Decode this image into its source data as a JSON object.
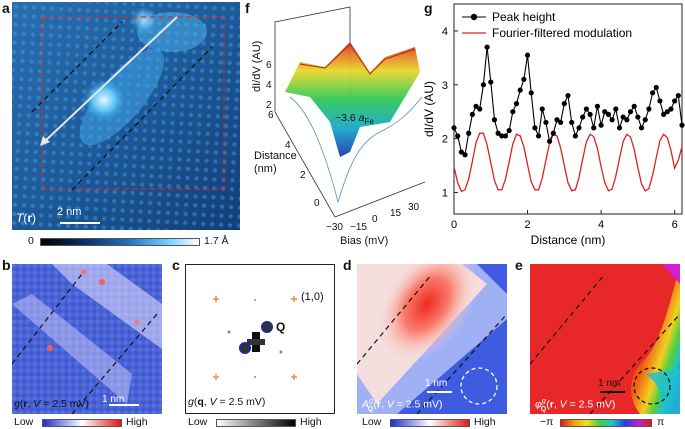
{
  "panels": {
    "a": {
      "letter": "a",
      "map_label": "T(r)",
      "scale_bar": "2 nm",
      "colorbar_min": "0",
      "colorbar_max": "1.7 Å"
    },
    "b": {
      "letter": "b",
      "map_label": "g(r, V = 2.5 mV)",
      "scale_bar": "1 nm",
      "colorbar_low": "Low",
      "colorbar_high": "High"
    },
    "c": {
      "letter": "c",
      "map_label": "g(q, V = 2.5 mV)",
      "bragg_label": "(1,0)",
      "q_label": "Q",
      "colorbar_low": "Low",
      "colorbar_high": "High"
    },
    "d": {
      "letter": "d",
      "map_label": "A_Q^g(r, V = 2.5 mV)",
      "scale_bar": "1 nm",
      "colorbar_low": "Low",
      "colorbar_high": "High"
    },
    "e": {
      "letter": "e",
      "map_label": "φ_Q^g(r, V = 2.5 mV)",
      "scale_bar": "1 nm",
      "colorbar_min": "−π",
      "colorbar_max": "π"
    },
    "f": {
      "letter": "f",
      "zlabel": "dI/dV (AU)",
      "ylabel": "Distance (nm)",
      "xlabel": "Bias (mV)",
      "annotation": "~3.6 a_Fe",
      "z_ticks": [
        "6",
        "4",
        "2",
        "0"
      ],
      "y_ticks": [
        "6",
        "4",
        "2",
        "0"
      ],
      "x_ticks": [
        "−30",
        "−15",
        "0",
        "15",
        "30"
      ]
    },
    "g": {
      "letter": "g"
    }
  },
  "colors": {
    "peak_height": "#000000",
    "modulation": "#e02020",
    "accent_dashed": "#cc2222"
  },
  "chart_data": {
    "type": "line",
    "title": "",
    "xlabel": "Distance (nm)",
    "ylabel": "dI/dV (AU)",
    "xlim": [
      0,
      6.2
    ],
    "ylim": [
      0.6,
      4.5
    ],
    "x_ticks": [
      0,
      2,
      4,
      6
    ],
    "y_ticks": [
      1,
      2,
      3,
      4
    ],
    "legend": "top-left",
    "series": [
      {
        "name": "Peak height",
        "marker": "circle",
        "x": [
          0.0,
          0.1,
          0.2,
          0.3,
          0.4,
          0.5,
          0.6,
          0.7,
          0.8,
          0.9,
          1.0,
          1.1,
          1.2,
          1.3,
          1.4,
          1.5,
          1.6,
          1.7,
          1.8,
          1.9,
          2.0,
          2.1,
          2.2,
          2.3,
          2.4,
          2.5,
          2.6,
          2.7,
          2.8,
          2.9,
          3.0,
          3.1,
          3.2,
          3.3,
          3.4,
          3.5,
          3.6,
          3.7,
          3.8,
          3.9,
          4.0,
          4.1,
          4.2,
          4.3,
          4.4,
          4.5,
          4.6,
          4.7,
          4.8,
          4.9,
          5.0,
          5.1,
          5.2,
          5.3,
          5.4,
          5.5,
          5.6,
          5.7,
          5.8,
          5.9,
          6.0,
          6.1,
          6.2
        ],
        "values": [
          2.2,
          2.05,
          1.75,
          1.7,
          2.1,
          2.45,
          2.6,
          2.55,
          3.0,
          3.7,
          3.05,
          2.35,
          2.1,
          2.05,
          2.05,
          2.15,
          2.5,
          2.65,
          2.9,
          3.1,
          3.55,
          2.85,
          2.2,
          2.05,
          2.55,
          2.3,
          1.95,
          2.1,
          2.35,
          2.3,
          2.65,
          2.8,
          2.3,
          2.05,
          2.2,
          2.4,
          2.55,
          2.45,
          2.2,
          2.6,
          2.25,
          2.5,
          2.45,
          2.35,
          2.55,
          2.2,
          2.4,
          2.35,
          2.5,
          2.6,
          2.4,
          2.2,
          2.35,
          2.55,
          2.85,
          2.95,
          2.7,
          2.45,
          2.5,
          2.55,
          2.7,
          2.8,
          2.25
        ]
      },
      {
        "name": "Fourier-filtered modulation",
        "marker": "none",
        "x": [
          0.0,
          0.1,
          0.2,
          0.3,
          0.4,
          0.5,
          0.6,
          0.7,
          0.8,
          0.9,
          1.0,
          1.1,
          1.2,
          1.3,
          1.4,
          1.5,
          1.6,
          1.7,
          1.8,
          1.9,
          2.0,
          2.1,
          2.2,
          2.3,
          2.4,
          2.5,
          2.6,
          2.7,
          2.8,
          2.9,
          3.0,
          3.1,
          3.2,
          3.3,
          3.4,
          3.5,
          3.6,
          3.7,
          3.8,
          3.9,
          4.0,
          4.1,
          4.2,
          4.3,
          4.4,
          4.5,
          4.6,
          4.7,
          4.8,
          4.9,
          5.0,
          5.1,
          5.2,
          5.3,
          5.4,
          5.5,
          5.6,
          5.7,
          5.8,
          5.9,
          6.0,
          6.1,
          6.2
        ],
        "values": [
          1.48,
          1.18,
          1.02,
          1.05,
          1.25,
          1.58,
          1.93,
          2.1,
          2.1,
          1.88,
          1.55,
          1.22,
          1.05,
          1.05,
          1.25,
          1.57,
          1.9,
          2.08,
          2.05,
          1.85,
          1.52,
          1.2,
          1.05,
          1.05,
          1.27,
          1.6,
          1.92,
          2.08,
          2.05,
          1.83,
          1.5,
          1.18,
          1.03,
          1.05,
          1.28,
          1.62,
          1.94,
          2.08,
          2.04,
          1.82,
          1.48,
          1.18,
          1.03,
          1.06,
          1.3,
          1.63,
          1.95,
          2.08,
          2.03,
          1.8,
          1.46,
          1.16,
          1.03,
          1.07,
          1.32,
          1.65,
          1.96,
          2.08,
          2.02,
          1.78,
          1.45,
          1.6,
          1.85
        ]
      }
    ]
  }
}
